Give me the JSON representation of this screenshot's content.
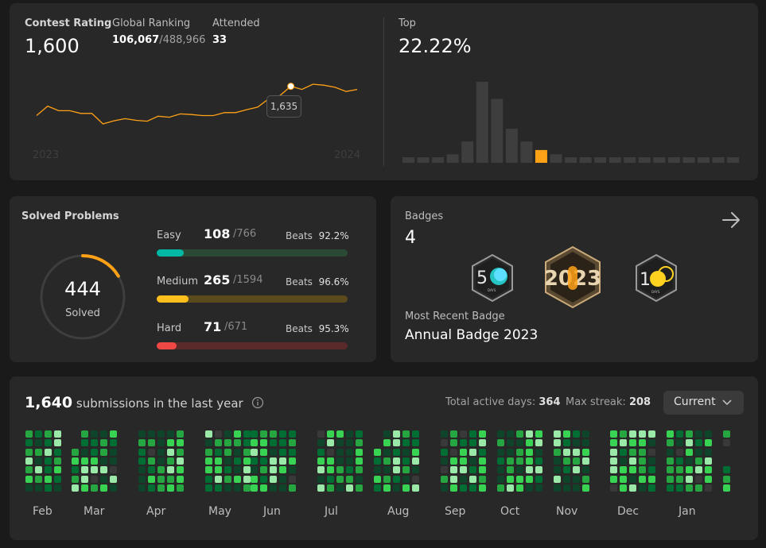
{
  "contest": {
    "rating_label": "Contest Rating",
    "rating_value": "1,600",
    "ranking_label": "Global Ranking",
    "ranking_value": "106,067",
    "ranking_total": "/488,966",
    "attended_label": "Attended",
    "attended_value": "33",
    "top_label": "Top",
    "top_value": "22.22%",
    "tooltip_value": "1,635",
    "year_start": "2023",
    "year_end": "2024",
    "rating_series": [
      1495,
      1540,
      1518,
      1518,
      1505,
      1505,
      1455,
      1470,
      1480,
      1472,
      1468,
      1492,
      1487,
      1503,
      1500,
      1495,
      1495,
      1509,
      1509,
      1523,
      1535,
      1575,
      1590,
      1635,
      1620,
      1645,
      1640,
      1630,
      1610,
      1620
    ],
    "highlight_index": 23,
    "distribution": [
      1,
      1,
      1,
      2,
      5,
      19,
      15,
      8,
      5,
      3,
      2,
      1,
      1,
      1,
      1,
      1,
      1,
      1,
      1,
      1,
      1,
      1,
      1
    ],
    "highlight_bucket": 9,
    "accent": "#ffa116"
  },
  "solved": {
    "title": "Solved Problems",
    "total": "444",
    "total_label": "Solved",
    "difficulties": [
      {
        "name": "Easy",
        "solved": "108",
        "total": "/766",
        "beats_label": "Beats",
        "beats": "92.2%",
        "ratio": 0.141,
        "color": "#00b8a3",
        "track": "#2a4a35"
      },
      {
        "name": "Medium",
        "solved": "265",
        "total": "/1594",
        "beats_label": "Beats",
        "beats": "96.6%",
        "ratio": 0.166,
        "color": "#ffc01e",
        "track": "#5a4a1c"
      },
      {
        "name": "Hard",
        "solved": "71",
        "total": "/671",
        "beats_label": "Beats",
        "beats": "95.3%",
        "ratio": 0.106,
        "color": "#ef4743",
        "track": "#5a2a2a"
      }
    ]
  },
  "badges": {
    "title": "Badges",
    "count": "4",
    "items": [
      {
        "name": "50-days-badge-icon",
        "glyph": "50",
        "sub": "DAYS"
      },
      {
        "name": "annual-badge-2023-icon",
        "glyph": "2023",
        "sub": ""
      },
      {
        "name": "100-days-badge-icon",
        "glyph": "10",
        "sub": "DAYS"
      }
    ],
    "recent_label": "Most Recent Badge",
    "recent_value": "Annual Badge 2023"
  },
  "calendar": {
    "count": "1,640",
    "count_suffix": "submissions in the last year",
    "active_label": "Total active days:",
    "active_value": "364",
    "streak_label": "Max streak:",
    "streak_value": "208",
    "dropdown_value": "Current",
    "months": [
      "Feb",
      "Mar",
      "Apr",
      "May",
      "Jun",
      "Jul",
      "Aug",
      "Sep",
      "Oct",
      "Nov",
      "Dec",
      "Jan"
    ],
    "colors": {
      "empty": "#393939",
      "l1": "#0e4429",
      "l2": "#006d32",
      "l3": "#26a641",
      "l4": "#39d353",
      "l5": "#9be9a8"
    }
  }
}
